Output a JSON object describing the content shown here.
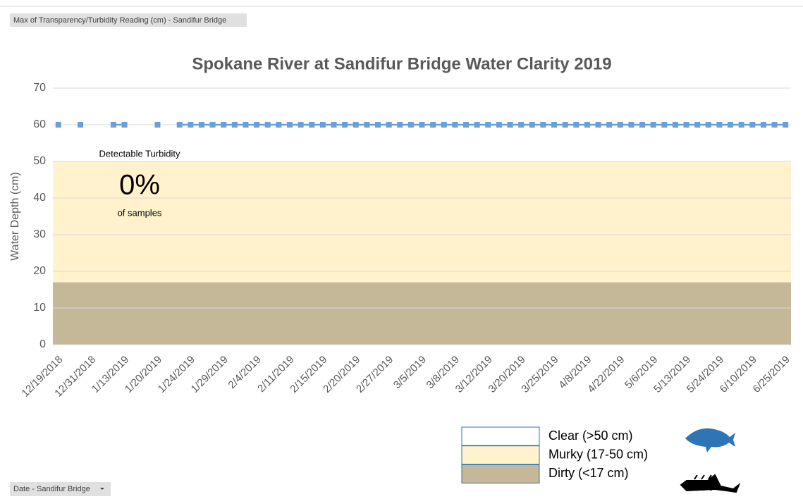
{
  "chart_data": {
    "type": "line",
    "field_button": "Max of Transparency/Turbidity Reading (cm) - Sandifur Bridge",
    "axis_button": "Date - Sandifur Bridge",
    "title": "Spokane River at Sandifur Bridge Water Clarity 2019",
    "ylabel": "Water Depth (cm)",
    "ylim": [
      0,
      70
    ],
    "yticks": [
      0,
      10,
      20,
      30,
      40,
      50,
      60,
      70
    ],
    "grid": true,
    "bands": [
      {
        "name": "Clear (>50 cm)",
        "from": 50,
        "to": 70,
        "color": "#ffffff"
      },
      {
        "name": "Murky (17-50 cm)",
        "from": 17,
        "to": 50,
        "color": "#fff2cc"
      },
      {
        "name": "Dirty (<17 cm)",
        "from": 0,
        "to": 17,
        "color": "#c4b898"
      }
    ],
    "annotation": {
      "heading": "Detectable Turbidity",
      "value": 0,
      "value_label": "0%",
      "caption": "of samples"
    },
    "categories": [
      "12/19/2018",
      null,
      null,
      "12/31/2018",
      null,
      null,
      "1/13/2019",
      null,
      null,
      "1/20/2019",
      null,
      null,
      "1/24/2019",
      null,
      null,
      "1/29/2019",
      null,
      null,
      "2/4/2019",
      null,
      null,
      "2/11/2019",
      null,
      null,
      "2/15/2019",
      null,
      null,
      "2/20/2019",
      null,
      null,
      "2/27/2019",
      null,
      null,
      "3/5/2019",
      null,
      null,
      "3/8/2019",
      null,
      null,
      "3/12/2019",
      null,
      null,
      "3/20/2019",
      null,
      null,
      "3/25/2019",
      null,
      null,
      "4/8/2019",
      null,
      null,
      "4/22/2019",
      null,
      null,
      "5/6/2019",
      null,
      null,
      "5/13/2019",
      null,
      null,
      "5/24/2019",
      null,
      null,
      "6/10/2019",
      null,
      null,
      "6/25/2019"
    ],
    "series": [
      {
        "name": "Max of Transparency/Turbidity Reading (cm)",
        "color": "#6a9fd8",
        "values": [
          60,
          null,
          60,
          null,
          null,
          60,
          60,
          null,
          null,
          60,
          null,
          60,
          60,
          60,
          60,
          60,
          60,
          60,
          60,
          60,
          60,
          60,
          60,
          60,
          60,
          60,
          60,
          60,
          60,
          60,
          60,
          60,
          60,
          60,
          60,
          60,
          60,
          60,
          60,
          60,
          60,
          60,
          60,
          60,
          60,
          60,
          60,
          60,
          60,
          60,
          60,
          60,
          60,
          60,
          60,
          60,
          60,
          60,
          60,
          60,
          60,
          60,
          60,
          60,
          60,
          60,
          60
        ]
      }
    ]
  }
}
